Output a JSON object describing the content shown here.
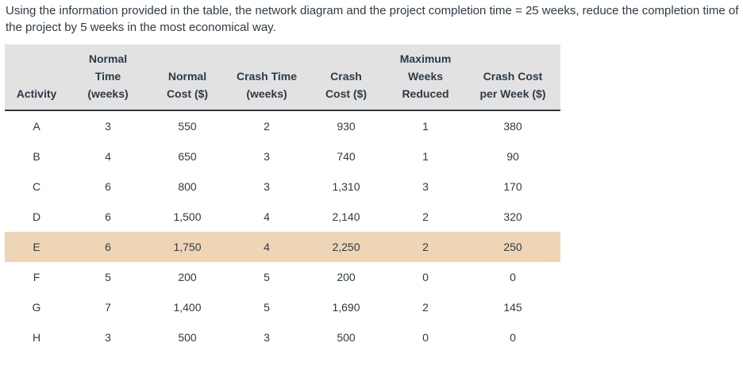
{
  "question": {
    "text": "Using the information provided in the table, the network diagram and the project completion time = 25 weeks, reduce the completion time of the project by 5 weeks in the most economical way."
  },
  "table": {
    "headers": [
      {
        "lines": [
          "Activity"
        ]
      },
      {
        "lines": [
          "Normal",
          "Time",
          "(weeks)"
        ]
      },
      {
        "lines": [
          "Normal",
          "Cost ($)"
        ]
      },
      {
        "lines": [
          "Crash Time",
          "(weeks)"
        ]
      },
      {
        "lines": [
          "Crash",
          "Cost ($)"
        ]
      },
      {
        "lines": [
          "Maximum",
          "Weeks",
          "Reduced"
        ]
      },
      {
        "lines": [
          "Crash Cost",
          "per Week ($)"
        ]
      }
    ],
    "highlight_color": "#eed5b6",
    "header_bg": "#e2e2e2",
    "rows": [
      {
        "activity": "A",
        "normal_time": "3",
        "normal_cost": "550",
        "crash_time": "2",
        "crash_cost": "930",
        "max_reduced": "1",
        "cost_per_week": "380",
        "highlighted": false
      },
      {
        "activity": "B",
        "normal_time": "4",
        "normal_cost": "650",
        "crash_time": "3",
        "crash_cost": "740",
        "max_reduced": "1",
        "cost_per_week": "90",
        "highlighted": false
      },
      {
        "activity": "C",
        "normal_time": "6",
        "normal_cost": "800",
        "crash_time": "3",
        "crash_cost": "1,310",
        "max_reduced": "3",
        "cost_per_week": "170",
        "highlighted": false
      },
      {
        "activity": "D",
        "normal_time": "6",
        "normal_cost": "1,500",
        "crash_time": "4",
        "crash_cost": "2,140",
        "max_reduced": "2",
        "cost_per_week": "320",
        "highlighted": false
      },
      {
        "activity": "E",
        "normal_time": "6",
        "normal_cost": "1,750",
        "crash_time": "4",
        "crash_cost": "2,250",
        "max_reduced": "2",
        "cost_per_week": "250",
        "highlighted": true
      },
      {
        "activity": "F",
        "normal_time": "5",
        "normal_cost": "200",
        "crash_time": "5",
        "crash_cost": "200",
        "max_reduced": "0",
        "cost_per_week": "0",
        "highlighted": false
      },
      {
        "activity": "G",
        "normal_time": "7",
        "normal_cost": "1,400",
        "crash_time": "5",
        "crash_cost": "1,690",
        "max_reduced": "2",
        "cost_per_week": "145",
        "highlighted": false
      },
      {
        "activity": "H",
        "normal_time": "3",
        "normal_cost": "500",
        "crash_time": "3",
        "crash_cost": "500",
        "max_reduced": "0",
        "cost_per_week": "0",
        "highlighted": false
      }
    ]
  }
}
